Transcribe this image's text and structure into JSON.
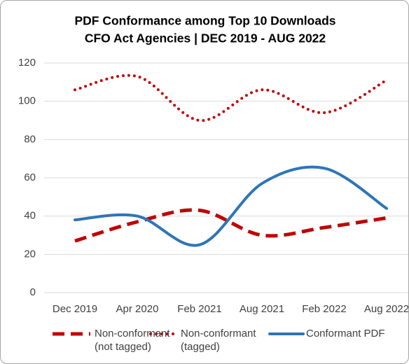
{
  "chart_data": {
    "type": "line",
    "title": "PDF Conformance among Top 10 Downloads",
    "subtitle": "CFO Act Agencies | DEC 2019 - AUG 2022",
    "categories": [
      "Dec 2019",
      "Apr 2020",
      "Feb 2021",
      "Aug 2021",
      "Feb 2022",
      "Aug 2022"
    ],
    "series": [
      {
        "name": "Non-conformant (not tagged)",
        "color": "#c00000",
        "line_style": "dash",
        "values": [
          27,
          37,
          43,
          30,
          34,
          39
        ]
      },
      {
        "name": "Non-conformant (tagged)",
        "color": "#c00000",
        "line_style": "dot",
        "values": [
          106,
          113,
          90,
          106,
          94,
          111
        ]
      },
      {
        "name": "Conformant PDF",
        "color": "#2e75b6",
        "line_style": "solid",
        "values": [
          38,
          40,
          25,
          57,
          65,
          44
        ]
      }
    ],
    "smooth": true,
    "ylim": [
      0,
      120
    ],
    "yticks": [
      0,
      20,
      40,
      60,
      80,
      100,
      120
    ],
    "grid": true,
    "legend": "bottom"
  }
}
